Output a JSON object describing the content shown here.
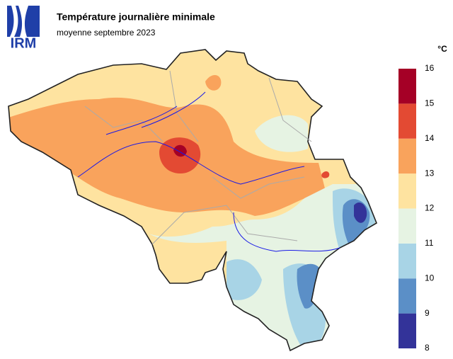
{
  "header": {
    "logo": "IRM",
    "title": "Température journalière minimale",
    "subtitle": "moyenne septembre 2023"
  },
  "legend": {
    "unit": "°C",
    "ticks": [
      8,
      9,
      10,
      11,
      12,
      13,
      14,
      15,
      16
    ],
    "colors": [
      "#333399",
      "#5b8fc7",
      "#a8d4e6",
      "#e6f3e3",
      "#fee3a0",
      "#f9a35c",
      "#e34a33",
      "#a50026"
    ]
  }
}
